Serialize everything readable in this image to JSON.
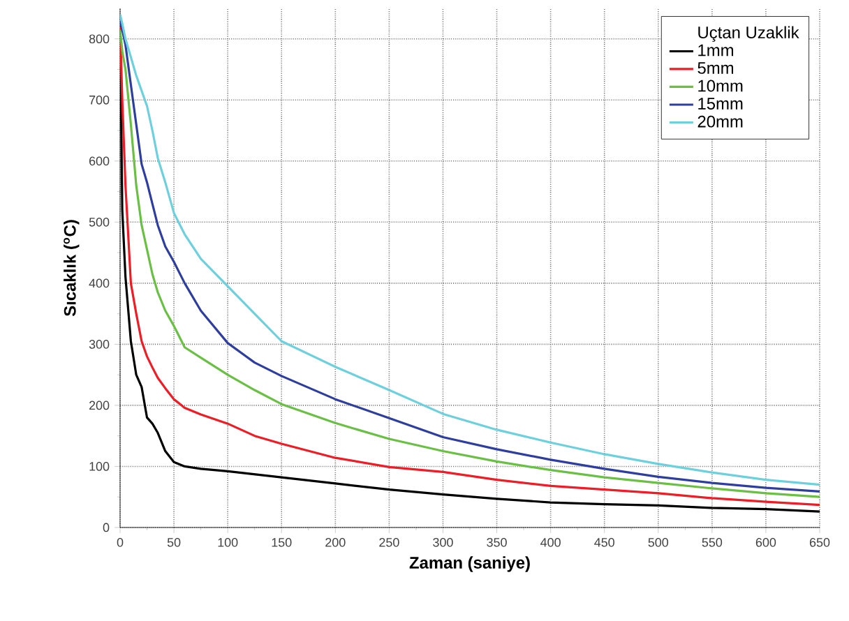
{
  "chart_data": {
    "type": "line",
    "xlabel": "Zaman (saniye)",
    "ylabel": "Sıcaklık ($^{o}$C)",
    "legend_title": "Uçtan Uzaklik",
    "x": [
      0,
      2,
      5,
      10,
      15,
      20,
      25,
      30,
      35,
      42,
      50,
      60,
      75,
      100,
      125,
      150,
      200,
      250,
      300,
      350,
      400,
      450,
      500,
      550,
      600,
      650
    ],
    "series": [
      {
        "name": "1mm",
        "color": "#000000",
        "values": [
          830,
          520,
          410,
          305,
          250,
          230,
          180,
          170,
          155,
          125,
          107,
          100,
          96,
          92,
          87,
          82,
          72,
          62,
          54,
          47,
          41,
          38,
          36,
          32,
          30,
          26
        ]
      },
      {
        "name": "5mm",
        "color": "#ee1c24",
        "values": [
          820,
          700,
          560,
          400,
          350,
          305,
          280,
          262,
          245,
          228,
          210,
          196,
          185,
          170,
          150,
          137,
          114,
          99,
          91,
          78,
          68,
          62,
          56,
          48,
          42,
          37
        ]
      },
      {
        "name": "10mm",
        "color": "#6abf45",
        "values": [
          815,
          780,
          750,
          660,
          560,
          495,
          455,
          415,
          385,
          355,
          330,
          295,
          278,
          250,
          225,
          202,
          171,
          145,
          125,
          108,
          94,
          82,
          73,
          64,
          56,
          50
        ]
      },
      {
        "name": "15mm",
        "color": "#2e3e9e",
        "values": [
          830,
          815,
          790,
          725,
          660,
          595,
          565,
          530,
          495,
          460,
          435,
          400,
          355,
          302,
          270,
          248,
          210,
          179,
          148,
          128,
          111,
          96,
          83,
          73,
          65,
          59
        ]
      },
      {
        "name": "20mm",
        "color": "#6dd0dc",
        "values": [
          840,
          825,
          800,
          770,
          740,
          715,
          690,
          650,
          605,
          565,
          515,
          480,
          440,
          395,
          350,
          305,
          263,
          225,
          186,
          160,
          139,
          120,
          104,
          90,
          78,
          70
        ]
      }
    ],
    "xlim": [
      0,
      650
    ],
    "ylim": [
      0,
      850
    ],
    "xticks": [
      0,
      50,
      100,
      150,
      200,
      250,
      300,
      350,
      400,
      450,
      500,
      550,
      600,
      650
    ],
    "yticks": [
      0,
      100,
      200,
      300,
      400,
      500,
      600,
      700,
      800
    ],
    "grid": true,
    "legend": "top right",
    "line_style": "solid",
    "marker": "none"
  }
}
